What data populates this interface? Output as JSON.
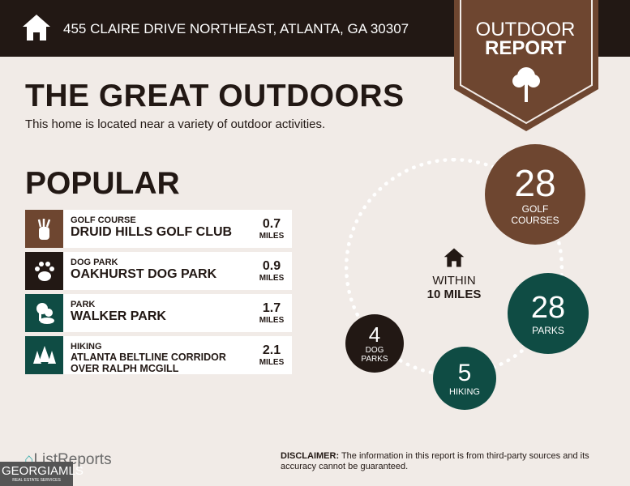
{
  "header": {
    "address": "455 CLAIRE DRIVE NORTHEAST, ATLANTA, GA 30307",
    "badge_line1": "OUTDOOR",
    "badge_line2": "REPORT"
  },
  "main": {
    "title": "THE GREAT OUTDOORS",
    "subtitle": "This home is located near a variety of outdoor activities.",
    "popular_title": "POPULAR"
  },
  "popular": [
    {
      "category": "GOLF COURSE",
      "name": "DRUID HILLS GOLF CLUB",
      "distance": "0.7",
      "unit": "MILES",
      "icon": "golf-bag-icon",
      "color": "#6e4630"
    },
    {
      "category": "DOG PARK",
      "name": "OAKHURST DOG PARK",
      "distance": "0.9",
      "unit": "MILES",
      "icon": "paw-icon",
      "color": "#221814"
    },
    {
      "category": "PARK",
      "name": "WALKER PARK",
      "distance": "1.7",
      "unit": "MILES",
      "icon": "park-tree-icon",
      "color": "#0f4c44"
    },
    {
      "category": "HIKING",
      "name": "ATLANTA BELTLINE CORRIDOR OVER RALPH MCGILL",
      "distance": "2.1",
      "unit": "MILES",
      "icon": "pine-trees-icon",
      "color": "#0f4c44"
    }
  ],
  "summary": {
    "within_line1": "WITHIN",
    "within_line2": "10 MILES",
    "golf": {
      "count": "28",
      "label1": "GOLF",
      "label2": "COURSES"
    },
    "parks": {
      "count": "28",
      "label": "PARKS"
    },
    "hiking": {
      "count": "5",
      "label": "HIKING"
    },
    "dog": {
      "count": "4",
      "label1": "DOG",
      "label2": "PARKS"
    }
  },
  "footer": {
    "brand": "ListReports",
    "disclaimer_label": "DISCLAIMER:",
    "disclaimer": " The information in this report is from third-party sources and its accuracy cannot be guaranteed.",
    "watermark": "GEORGIAMLS",
    "watermark_sub": "REAL ESTATE SERVICES"
  }
}
